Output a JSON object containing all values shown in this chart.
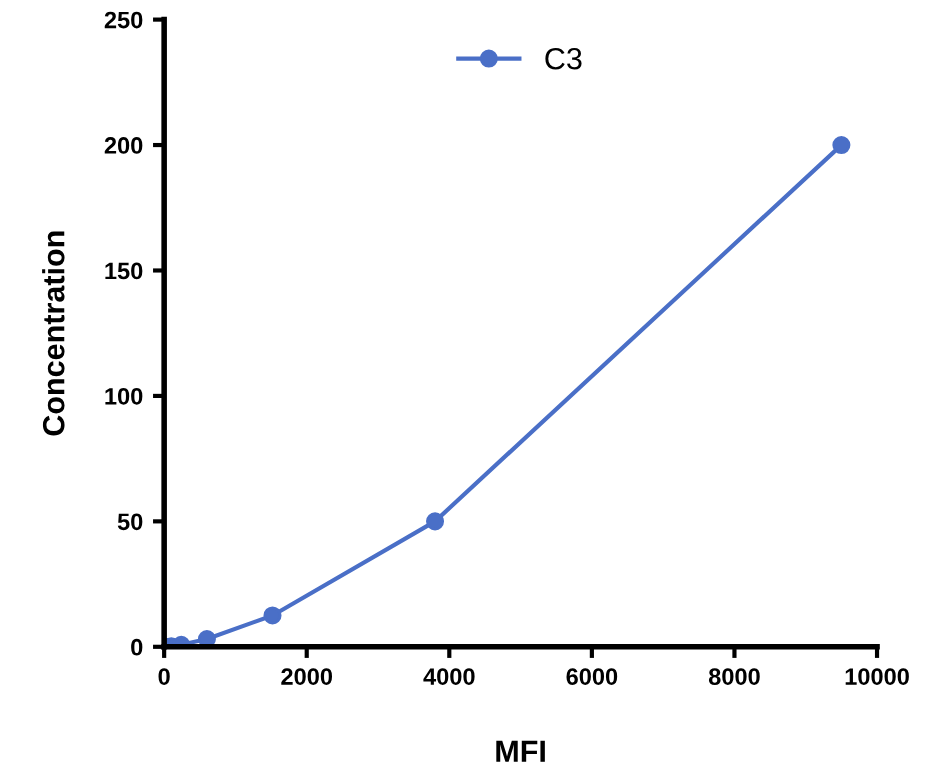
{
  "chart_data": {
    "type": "line",
    "xlabel": "MFI",
    "ylabel": "Concentration",
    "x": [
      30,
      100,
      240,
      600,
      1520,
      3800,
      9500
    ],
    "series": [
      {
        "name": "C3",
        "color": "#4a6fc7",
        "values": [
          0,
          0.2,
          0.8,
          3.1,
          12.5,
          50,
          200
        ]
      }
    ],
    "xlim": [
      0,
      10000
    ],
    "xticks": [
      0,
      2000,
      4000,
      6000,
      8000,
      10000
    ],
    "ylim": [
      0,
      250
    ],
    "yticks": [
      0,
      50,
      100,
      150,
      200,
      250
    ],
    "grid": false,
    "legend": "top",
    "marker": "circle",
    "line_style": "solid"
  }
}
